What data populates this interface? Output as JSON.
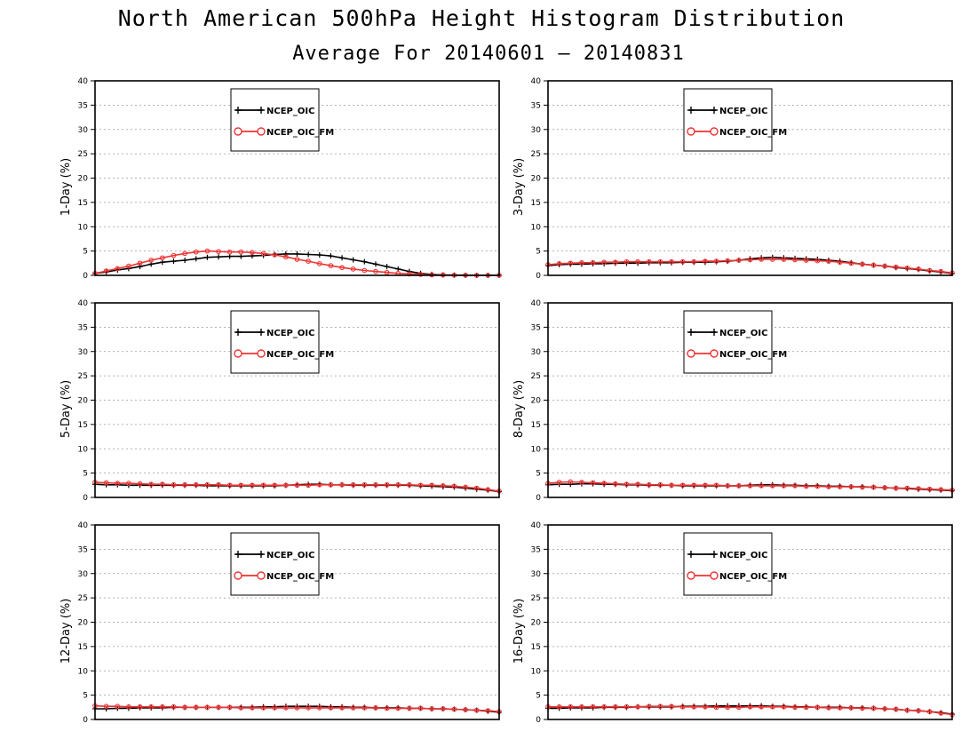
{
  "title": "North American 500hPa Height Histogram Distribution",
  "subtitle": "Average For 20140601 – 20140831",
  "legend": [
    "NCEP_OIC",
    "NCEP_OIC_FM"
  ],
  "colors": {
    "series1": "#000000",
    "series2": "#ee3333",
    "grid": "#9a9a9a",
    "axis": "#000000"
  },
  "markers": {
    "series1": "plus",
    "series2": "open-circle"
  },
  "chart_data": [
    {
      "type": "line",
      "ylabel": "1-Day (%)",
      "ylim": [
        0,
        40
      ],
      "yticks": [
        0,
        5,
        10,
        15,
        20,
        25,
        30,
        35,
        40
      ],
      "grid": true,
      "legend_placement": "top-center",
      "series": [
        {
          "name": "NCEP_OIC",
          "values": [
            0.4,
            0.7,
            1.1,
            1.4,
            1.8,
            2.3,
            2.7,
            2.9,
            3.1,
            3.4,
            3.7,
            3.8,
            3.9,
            3.9,
            4.0,
            4.1,
            4.3,
            4.4,
            4.4,
            4.3,
            4.2,
            4.0,
            3.6,
            3.2,
            2.8,
            2.3,
            1.8,
            1.3,
            0.8,
            0.4,
            0.2,
            0.1,
            0.05,
            0.0,
            0.0,
            0.0,
            0.0
          ]
        },
        {
          "name": "NCEP_OIC_FM",
          "values": [
            0.4,
            0.9,
            1.4,
            1.9,
            2.5,
            3.1,
            3.6,
            4.1,
            4.5,
            4.8,
            5.0,
            4.9,
            4.8,
            4.8,
            4.7,
            4.5,
            4.2,
            3.8,
            3.3,
            2.9,
            2.4,
            2.0,
            1.6,
            1.3,
            1.0,
            0.8,
            0.6,
            0.4,
            0.3,
            0.2,
            0.1,
            0.1,
            0.05,
            0.05,
            0.0,
            0.0,
            0.0
          ]
        }
      ]
    },
    {
      "type": "line",
      "ylabel": "3-Day (%)",
      "ylim": [
        0,
        40
      ],
      "yticks": [
        0,
        5,
        10,
        15,
        20,
        25,
        30,
        35,
        40
      ],
      "grid": true,
      "legend_placement": "top-center",
      "series": [
        {
          "name": "NCEP_OIC",
          "values": [
            2.0,
            2.2,
            2.3,
            2.3,
            2.4,
            2.4,
            2.5,
            2.5,
            2.5,
            2.6,
            2.6,
            2.6,
            2.7,
            2.7,
            2.7,
            2.8,
            2.9,
            3.1,
            3.4,
            3.6,
            3.7,
            3.6,
            3.5,
            3.4,
            3.3,
            3.1,
            2.9,
            2.6,
            2.3,
            2.1,
            1.9,
            1.6,
            1.4,
            1.2,
            0.9,
            0.7,
            0.4
          ]
        },
        {
          "name": "NCEP_OIC_FM",
          "values": [
            2.2,
            2.4,
            2.5,
            2.6,
            2.6,
            2.7,
            2.7,
            2.8,
            2.8,
            2.8,
            2.8,
            2.8,
            2.8,
            2.8,
            2.9,
            2.9,
            3.0,
            3.1,
            3.2,
            3.3,
            3.3,
            3.3,
            3.2,
            3.1,
            3.0,
            2.9,
            2.7,
            2.5,
            2.3,
            2.1,
            1.9,
            1.7,
            1.5,
            1.3,
            1.0,
            0.8,
            0.5
          ]
        }
      ]
    },
    {
      "type": "line",
      "ylabel": "5-Day (%)",
      "ylim": [
        0,
        40
      ],
      "yticks": [
        0,
        5,
        10,
        15,
        20,
        25,
        30,
        35,
        40
      ],
      "grid": true,
      "legend_placement": "top-center",
      "series": [
        {
          "name": "NCEP_OIC",
          "values": [
            2.7,
            2.6,
            2.6,
            2.5,
            2.5,
            2.5,
            2.5,
            2.5,
            2.5,
            2.5,
            2.4,
            2.4,
            2.4,
            2.4,
            2.4,
            2.4,
            2.4,
            2.5,
            2.6,
            2.7,
            2.7,
            2.6,
            2.6,
            2.5,
            2.5,
            2.5,
            2.5,
            2.5,
            2.5,
            2.4,
            2.3,
            2.2,
            2.1,
            1.9,
            1.7,
            1.5,
            1.2
          ]
        },
        {
          "name": "NCEP_OIC_FM",
          "values": [
            3.1,
            3.0,
            2.9,
            2.9,
            2.8,
            2.7,
            2.7,
            2.6,
            2.6,
            2.6,
            2.6,
            2.6,
            2.5,
            2.5,
            2.5,
            2.5,
            2.5,
            2.5,
            2.5,
            2.5,
            2.6,
            2.6,
            2.6,
            2.6,
            2.6,
            2.6,
            2.6,
            2.6,
            2.6,
            2.5,
            2.5,
            2.4,
            2.3,
            2.1,
            1.9,
            1.6,
            1.3
          ]
        }
      ]
    },
    {
      "type": "line",
      "ylabel": "8-Day (%)",
      "ylim": [
        0,
        40
      ],
      "yticks": [
        0,
        5,
        10,
        15,
        20,
        25,
        30,
        35,
        40
      ],
      "grid": true,
      "legend_placement": "top-center",
      "series": [
        {
          "name": "NCEP_OIC",
          "values": [
            2.6,
            2.7,
            2.7,
            2.8,
            2.8,
            2.7,
            2.7,
            2.6,
            2.6,
            2.5,
            2.5,
            2.5,
            2.4,
            2.4,
            2.4,
            2.4,
            2.4,
            2.4,
            2.5,
            2.6,
            2.6,
            2.5,
            2.5,
            2.4,
            2.4,
            2.3,
            2.3,
            2.2,
            2.2,
            2.1,
            2.0,
            1.9,
            1.8,
            1.7,
            1.6,
            1.5,
            1.4
          ]
        },
        {
          "name": "NCEP_OIC_FM",
          "values": [
            2.9,
            3.1,
            3.2,
            3.1,
            3.0,
            2.9,
            2.8,
            2.7,
            2.7,
            2.6,
            2.6,
            2.5,
            2.5,
            2.5,
            2.5,
            2.5,
            2.4,
            2.4,
            2.4,
            2.4,
            2.4,
            2.4,
            2.4,
            2.3,
            2.3,
            2.2,
            2.2,
            2.2,
            2.1,
            2.1,
            2.0,
            1.9,
            1.9,
            1.8,
            1.7,
            1.6,
            1.5
          ]
        }
      ]
    },
    {
      "type": "line",
      "ylabel": "12-Day (%)",
      "ylim": [
        0,
        40
      ],
      "yticks": [
        0,
        5,
        10,
        15,
        20,
        25,
        30,
        35,
        40
      ],
      "grid": true,
      "legend_placement": "top-center",
      "series": [
        {
          "name": "NCEP_OIC",
          "values": [
            2.2,
            2.2,
            2.3,
            2.3,
            2.4,
            2.4,
            2.4,
            2.5,
            2.5,
            2.5,
            2.5,
            2.5,
            2.5,
            2.5,
            2.5,
            2.6,
            2.6,
            2.7,
            2.7,
            2.7,
            2.7,
            2.6,
            2.6,
            2.5,
            2.5,
            2.4,
            2.4,
            2.4,
            2.3,
            2.3,
            2.2,
            2.2,
            2.1,
            2.0,
            1.9,
            1.7,
            1.5
          ]
        },
        {
          "name": "NCEP_OIC_FM",
          "values": [
            2.8,
            2.7,
            2.7,
            2.6,
            2.6,
            2.6,
            2.6,
            2.6,
            2.5,
            2.5,
            2.5,
            2.5,
            2.5,
            2.4,
            2.4,
            2.4,
            2.4,
            2.4,
            2.4,
            2.4,
            2.4,
            2.4,
            2.4,
            2.4,
            2.4,
            2.4,
            2.3,
            2.3,
            2.3,
            2.3,
            2.2,
            2.2,
            2.1,
            2.0,
            1.9,
            1.8,
            1.6
          ]
        }
      ]
    },
    {
      "type": "line",
      "ylabel": "16-Day (%)",
      "ylim": [
        0,
        40
      ],
      "yticks": [
        0,
        5,
        10,
        15,
        20,
        25,
        30,
        35,
        40
      ],
      "grid": true,
      "legend_placement": "top-center",
      "series": [
        {
          "name": "NCEP_OIC",
          "values": [
            2.3,
            2.3,
            2.4,
            2.4,
            2.4,
            2.5,
            2.5,
            2.5,
            2.6,
            2.6,
            2.6,
            2.6,
            2.7,
            2.7,
            2.7,
            2.8,
            2.8,
            2.8,
            2.8,
            2.8,
            2.7,
            2.7,
            2.6,
            2.6,
            2.5,
            2.5,
            2.5,
            2.4,
            2.4,
            2.3,
            2.2,
            2.1,
            1.9,
            1.8,
            1.6,
            1.4,
            1.1
          ]
        },
        {
          "name": "NCEP_OIC_FM",
          "values": [
            2.6,
            2.6,
            2.6,
            2.6,
            2.6,
            2.6,
            2.6,
            2.6,
            2.6,
            2.7,
            2.7,
            2.7,
            2.6,
            2.6,
            2.6,
            2.5,
            2.5,
            2.5,
            2.6,
            2.6,
            2.6,
            2.6,
            2.5,
            2.5,
            2.5,
            2.4,
            2.4,
            2.4,
            2.3,
            2.3,
            2.2,
            2.1,
            1.9,
            1.8,
            1.6,
            1.3,
            1.0
          ]
        }
      ]
    }
  ]
}
